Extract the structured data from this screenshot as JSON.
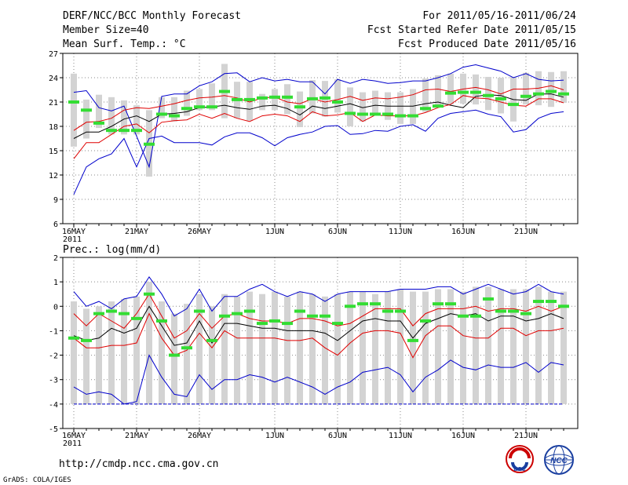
{
  "header": {
    "title": "DERF/NCC/BCC Monthly Forecast",
    "member_size": "Member Size=40",
    "variable": "Mean Surf. Temp.: °C",
    "fcst_period": "For 2011/05/16-2011/06/24",
    "fcst_started": "Fcst Started Refer Date 2011/05/15",
    "fcst_produced": "Fcst Produced Date 2011/05/16"
  },
  "footer": {
    "url": "http://cmdp.ncc.cma.gov.cn",
    "credit": "GrADS: COLA/IGES",
    "logo_left_text": "BCC",
    "logo_right_text": "NCC"
  },
  "colors": {
    "box": "#d3d3d3",
    "median": "#33dd33",
    "mean": "#000000",
    "band": "#e00000",
    "envelope": "#0000cc",
    "grid": "#888888"
  },
  "chart_data": [
    {
      "type": "box",
      "title": "Mean Surf. Temp.: °C",
      "xlabel": "",
      "ylabel": "",
      "ylim": [
        6,
        27
      ],
      "yticks": [
        6,
        9,
        12,
        15,
        18,
        21,
        24,
        27
      ],
      "x_tick_labels": [
        "16MAY",
        "21MAY",
        "26MAY",
        "1JUN",
        "6JUN",
        "11JUN",
        "16JUN",
        "21JUN"
      ],
      "x_tick_sublabel": "2011",
      "days": 40,
      "series": [
        {
          "name": "max",
          "values": [
            22.2,
            22.4,
            20.3,
            19.9,
            20.5,
            16.8,
            13.0,
            21.7,
            22.0,
            22.0,
            23.0,
            23.5,
            24.5,
            24.6,
            23.5,
            24.0,
            23.6,
            23.8,
            23.5,
            23.5,
            22.0,
            23.8,
            23.3,
            23.8,
            23.6,
            23.3,
            23.4,
            23.6,
            23.6,
            24.0,
            24.5,
            25.3,
            25.6,
            25.2,
            24.8,
            24.0,
            24.5,
            23.8,
            23.6,
            23.7
          ]
        },
        {
          "name": "upper",
          "values": [
            17.5,
            18.5,
            18.6,
            19.0,
            20.0,
            20.3,
            20.2,
            20.5,
            20.8,
            21.2,
            21.5,
            21.6,
            21.8,
            21.5,
            21.0,
            21.5,
            21.6,
            21.0,
            20.8,
            21.4,
            21.0,
            21.3,
            21.7,
            21.2,
            21.5,
            21.4,
            21.6,
            21.9,
            22.5,
            22.6,
            22.3,
            22.6,
            22.8,
            22.5,
            22.0,
            22.6,
            22.6,
            22.7,
            23.0,
            22.5
          ]
        },
        {
          "name": "mean",
          "values": [
            16.5,
            17.3,
            17.3,
            18.0,
            18.9,
            19.3,
            18.6,
            19.5,
            19.6,
            19.8,
            20.3,
            20.4,
            20.6,
            20.3,
            20.1,
            20.5,
            20.6,
            20.2,
            19.4,
            20.5,
            20.2,
            20.5,
            20.8,
            20.3,
            20.6,
            20.5,
            20.5,
            20.5,
            20.8,
            21.0,
            20.6,
            20.3,
            21.7,
            21.9,
            21.8,
            21.3,
            21.2,
            22.0,
            22.0,
            21.6
          ]
        },
        {
          "name": "lower",
          "values": [
            14.0,
            16.0,
            16.0,
            17.0,
            18.0,
            18.3,
            17.2,
            18.5,
            18.7,
            18.8,
            19.5,
            19.0,
            19.6,
            19.0,
            18.6,
            19.3,
            19.5,
            19.3,
            18.6,
            19.8,
            19.3,
            19.4,
            19.7,
            18.6,
            19.4,
            19.3,
            19.3,
            19.3,
            19.7,
            20.3,
            20.7,
            21.8,
            21.5,
            21.4,
            21.0,
            20.6,
            20.5,
            21.4,
            21.4,
            20.9
          ]
        },
        {
          "name": "min",
          "values": [
            9.6,
            13.0,
            14.0,
            14.6,
            16.5,
            13.0,
            16.5,
            16.8,
            16.0,
            16.0,
            16.0,
            15.7,
            16.7,
            17.2,
            17.2,
            16.6,
            15.6,
            16.6,
            17.0,
            17.3,
            18.0,
            18.1,
            17.0,
            17.1,
            17.5,
            17.4,
            18.0,
            18.2,
            17.4,
            19.0,
            19.6,
            19.8,
            20.0,
            19.5,
            19.2,
            17.3,
            17.6,
            19.0,
            19.6,
            19.8
          ]
        }
      ],
      "box_low": [
        15.5,
        16.5,
        17.8,
        17.0,
        17.0,
        17.0,
        11.8,
        19.0,
        18.6,
        19.3,
        20.0,
        20.0,
        19.0,
        19.0,
        18.7,
        20.0,
        20.0,
        19.5,
        17.9,
        19.6,
        19.2,
        19.7,
        18.0,
        18.6,
        19.5,
        18.8,
        18.3,
        18.3,
        19.8,
        20.5,
        20.7,
        20.8,
        20.7,
        20.0,
        19.6,
        18.6,
        20.7,
        20.6,
        20.4,
        20.9
      ],
      "box_high": [
        24.5,
        21.3,
        21.9,
        21.6,
        21.2,
        20.6,
        20.0,
        21.6,
        21.6,
        22.4,
        22.6,
        23.3,
        25.7,
        23.5,
        23.5,
        22.0,
        22.6,
        23.2,
        22.3,
        23.7,
        23.6,
        23.8,
        22.8,
        22.2,
        22.4,
        22.2,
        22.2,
        22.6,
        23.9,
        24.3,
        24.5,
        24.5,
        24.4,
        24.1,
        24.0,
        24.1,
        24.6,
        24.8,
        24.7,
        24.8
      ],
      "median": [
        21.0,
        20.0,
        18.4,
        17.5,
        17.5,
        17.5,
        15.8,
        19.5,
        19.3,
        20.2,
        20.4,
        20.4,
        22.3,
        21.3,
        21.3,
        21.5,
        21.6,
        21.6,
        20.4,
        21.4,
        21.5,
        21.0,
        19.6,
        19.5,
        19.5,
        19.5,
        19.3,
        19.3,
        20.2,
        20.5,
        22.1,
        22.2,
        22.2,
        21.8,
        21.4,
        20.7,
        21.7,
        22.0,
        22.3,
        22.0
      ]
    },
    {
      "type": "box",
      "title": "Prec.: log(mm/d)",
      "xlabel": "",
      "ylabel": "",
      "ylim": [
        -5,
        2
      ],
      "yticks": [
        -5,
        -4,
        -3,
        -2,
        -1,
        0,
        1,
        2
      ],
      "x_tick_labels": [
        "16MAY",
        "21MAY",
        "26MAY",
        "1JUN",
        "6JUN",
        "11JUN",
        "16JUN",
        "21JUN"
      ],
      "x_tick_sublabel": "2011",
      "days": 40,
      "baseline": -4,
      "series": [
        {
          "name": "max",
          "values": [
            0.6,
            0.0,
            0.2,
            -0.1,
            0.3,
            0.4,
            1.2,
            0.5,
            -0.4,
            -0.1,
            0.7,
            -0.2,
            0.4,
            0.4,
            0.7,
            0.9,
            0.6,
            0.4,
            0.6,
            0.5,
            0.2,
            0.5,
            0.6,
            0.6,
            0.6,
            0.6,
            0.7,
            0.7,
            0.7,
            0.8,
            0.8,
            0.5,
            0.7,
            0.9,
            0.7,
            0.5,
            0.6,
            0.9,
            0.6,
            0.5
          ]
        },
        {
          "name": "upper",
          "values": [
            -0.3,
            -0.8,
            -0.3,
            -0.6,
            -0.9,
            -0.3,
            0.5,
            -0.4,
            -1.3,
            -1.0,
            -0.3,
            -0.9,
            -0.4,
            -0.3,
            -0.5,
            -0.6,
            -0.6,
            -0.7,
            -0.5,
            -0.5,
            -0.6,
            -0.8,
            -0.7,
            -0.4,
            -0.1,
            -0.1,
            -0.1,
            -0.8,
            -0.3,
            -0.1,
            -0.1,
            -0.1,
            0.0,
            -0.2,
            -0.1,
            -0.1,
            -0.2,
            0.0,
            -0.2,
            0.0
          ]
        },
        {
          "name": "mean",
          "values": [
            -1.2,
            -1.4,
            -1.3,
            -0.9,
            -1.1,
            -0.9,
            0.0,
            -0.8,
            -1.6,
            -1.5,
            -0.6,
            -1.5,
            -0.7,
            -0.7,
            -0.8,
            -0.9,
            -0.9,
            -1.0,
            -1.0,
            -1.0,
            -1.1,
            -1.4,
            -1.0,
            -0.6,
            -0.5,
            -0.6,
            -0.6,
            -1.3,
            -0.7,
            -0.5,
            -0.3,
            -0.4,
            -0.3,
            -0.6,
            -0.4,
            -0.4,
            -0.6,
            -0.5,
            -0.3,
            -0.5
          ]
        },
        {
          "name": "lower",
          "values": [
            -1.3,
            -1.7,
            -1.7,
            -1.6,
            -1.6,
            -1.5,
            -0.3,
            -1.3,
            -2.0,
            -1.8,
            -1.1,
            -1.7,
            -1.0,
            -1.3,
            -1.3,
            -1.3,
            -1.3,
            -1.4,
            -1.4,
            -1.3,
            -1.7,
            -2.0,
            -1.5,
            -1.1,
            -1.0,
            -1.0,
            -1.1,
            -2.1,
            -1.2,
            -0.8,
            -0.8,
            -1.2,
            -1.3,
            -1.3,
            -0.9,
            -0.9,
            -1.2,
            -1.0,
            -1.0,
            -0.9
          ]
        },
        {
          "name": "min",
          "values": [
            -3.3,
            -3.6,
            -3.5,
            -3.6,
            -4.0,
            -3.9,
            -2.0,
            -2.9,
            -3.6,
            -3.7,
            -2.8,
            -3.4,
            -3.0,
            -3.0,
            -2.8,
            -2.9,
            -3.1,
            -2.9,
            -3.1,
            -3.3,
            -3.6,
            -3.3,
            -3.1,
            -2.7,
            -2.6,
            -2.5,
            -2.8,
            -3.5,
            -2.9,
            -2.6,
            -2.2,
            -2.5,
            -2.6,
            -2.4,
            -2.5,
            -2.5,
            -2.3,
            -2.7,
            -2.3,
            -2.4
          ]
        }
      ],
      "box_low": [
        -4.0,
        -4.0,
        -4.0,
        -4.0,
        -4.0,
        -4.0,
        -4.0,
        -4.0,
        -4.0,
        -4.0,
        -4.0,
        -4.0,
        -4.0,
        -4.0,
        -4.0,
        -4.0,
        -4.0,
        -4.0,
        -4.0,
        -4.0,
        -4.0,
        -4.0,
        -4.0,
        -4.0,
        -4.0,
        -4.0,
        -4.0,
        -4.0,
        -4.0,
        -4.0,
        -4.0,
        -4.0,
        -4.0,
        -4.0,
        -4.0,
        -4.0,
        -4.0,
        -4.0,
        -4.0,
        -4.0
      ],
      "box_high": [
        0.2,
        -0.1,
        0.0,
        0.2,
        0.3,
        0.4,
        1.0,
        0.2,
        -0.3,
        0.1,
        0.5,
        0.0,
        0.5,
        0.4,
        0.6,
        0.5,
        0.6,
        0.4,
        0.6,
        0.5,
        0.4,
        0.5,
        0.6,
        0.6,
        0.5,
        0.6,
        0.7,
        0.6,
        0.6,
        0.7,
        0.7,
        0.6,
        0.8,
        0.8,
        0.7,
        0.7,
        0.7,
        0.8,
        0.6,
        0.6
      ],
      "median": [
        -1.3,
        -1.4,
        -0.3,
        -0.2,
        -0.3,
        -0.5,
        0.5,
        -0.6,
        -2.0,
        -1.7,
        -0.2,
        -1.4,
        -0.4,
        -0.3,
        -0.2,
        -0.7,
        -0.6,
        -0.7,
        -0.2,
        -0.4,
        -0.4,
        -0.7,
        0.0,
        0.1,
        0.1,
        -0.2,
        -0.2,
        -1.4,
        -0.6,
        0.1,
        0.1,
        -0.4,
        -0.4,
        0.3,
        -0.2,
        -0.2,
        -0.3,
        0.2,
        0.2,
        0.0
      ]
    }
  ]
}
